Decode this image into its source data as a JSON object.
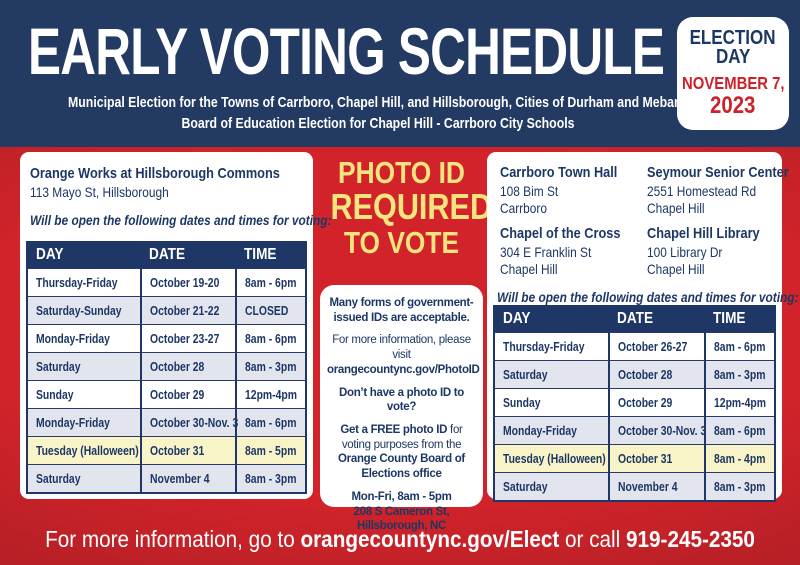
{
  "header": {
    "title": "EARLY VOTING SCHEDULE",
    "subtitle_line1": "Municipal Election for the Towns of Carrboro, Chapel Hill, and Hillsborough, Cities of Durham and Mebane;",
    "subtitle_line2": "Board of Education Election for Chapel Hill - Carrboro City Schools",
    "election_badge": {
      "line1": "ELECTION",
      "line2": "DAY",
      "line3": "NOVEMBER 7,",
      "line4": "2023"
    }
  },
  "left_panel": {
    "location_name": "Orange Works at Hillsborough Commons",
    "location_address": "113 Mayo St, Hillsborough",
    "open_note": "Will be open the following dates and times for voting:",
    "table": {
      "headers": [
        "DAY",
        "DATE",
        "TIME"
      ],
      "rows": [
        {
          "day": "Thursday-Friday",
          "date": "October 19-20",
          "time": "8am - 6pm",
          "highlight": false
        },
        {
          "day": "Saturday-Sunday",
          "date": "October 21-22",
          "time": "CLOSED",
          "highlight": false
        },
        {
          "day": "Monday-Friday",
          "date": "October 23-27",
          "time": "8am - 6pm",
          "highlight": false
        },
        {
          "day": "Saturday",
          "date": "October 28",
          "time": "8am - 3pm",
          "highlight": false
        },
        {
          "day": "Sunday",
          "date": "October 29",
          "time": "12pm-4pm",
          "highlight": false
        },
        {
          "day": "Monday-Friday",
          "date": "October 30-Nov. 3",
          "time": "8am - 6pm",
          "highlight": false
        },
        {
          "day": "Tuesday (Halloween)",
          "date": "October 31",
          "time": "8am - 5pm",
          "highlight": true
        },
        {
          "day": "Saturday",
          "date": "November 4",
          "time": "8am - 3pm",
          "highlight": false
        }
      ]
    }
  },
  "photo_id": {
    "heading_line1": "PHOTO ID",
    "heading_line2": "REQUIRED",
    "heading_line3": "TO VOTE",
    "info": {
      "p1": "Many forms of government-issued IDs are acceptable.",
      "p2_regular": "For more information, please visit",
      "p2_bold": "orangecountync.gov/PhotoID",
      "p3": "Don’t have a photo ID to vote?",
      "p4_bold1": "Get a FREE photo ID",
      "p4_regular": " for voting purposes from the ",
      "p4_bold2": "Orange County Board of Elections office",
      "p5": "Mon-Fri, 8am - 5pm",
      "p6": "208 S Cameron St,",
      "p7": "Hillsborough, NC"
    }
  },
  "right_panel": {
    "locations": [
      {
        "name": "Carrboro Town Hall",
        "address_line1": "108 Bim St",
        "address_line2": "Carrboro"
      },
      {
        "name": "Seymour Senior Center",
        "address_line1": "2551 Homestead Rd",
        "address_line2": "Chapel Hill"
      },
      {
        "name": "Chapel of the Cross",
        "address_line1": "304 E Franklin St",
        "address_line2": "Chapel Hill"
      },
      {
        "name": "Chapel Hill Library",
        "address_line1": "100 Library Dr",
        "address_line2": "Chapel Hill"
      }
    ],
    "open_note": "Will be open the following dates and times for voting:",
    "table": {
      "headers": [
        "DAY",
        "DATE",
        "TIME"
      ],
      "rows": [
        {
          "day": "Thursday-Friday",
          "date": "October 26-27",
          "time": "8am - 6pm",
          "highlight": false
        },
        {
          "day": "Saturday",
          "date": "October 28",
          "time": "8am - 3pm",
          "highlight": false
        },
        {
          "day": "Sunday",
          "date": "October 29",
          "time": "12pm-4pm",
          "highlight": false
        },
        {
          "day": "Monday-Friday",
          "date": "October 30-Nov. 3",
          "time": "8am - 6pm",
          "highlight": false
        },
        {
          "day": "Tuesday (Halloween)",
          "date": "October 31",
          "time": "8am - 4pm",
          "highlight": true
        },
        {
          "day": "Saturday",
          "date": "November 4",
          "time": "8am - 3pm",
          "highlight": false
        }
      ]
    }
  },
  "footer": {
    "text_prefix": "For more information, go to ",
    "link": "orangecountync.gov/Elect",
    "text_middle": " or call ",
    "phone": "919-245-2350"
  },
  "colors": {
    "navy": "#233a63",
    "navy_text": "#1d3764",
    "red": "#d2232a",
    "red_dark": "#961b20",
    "badge_red_text": "#cc2229",
    "yellow_heading": "#f2e47e",
    "row_alt": "#e2e4ee",
    "row_highlight": "#f8f4c8",
    "table_header": "#1f3766",
    "white": "#ffffff"
  }
}
